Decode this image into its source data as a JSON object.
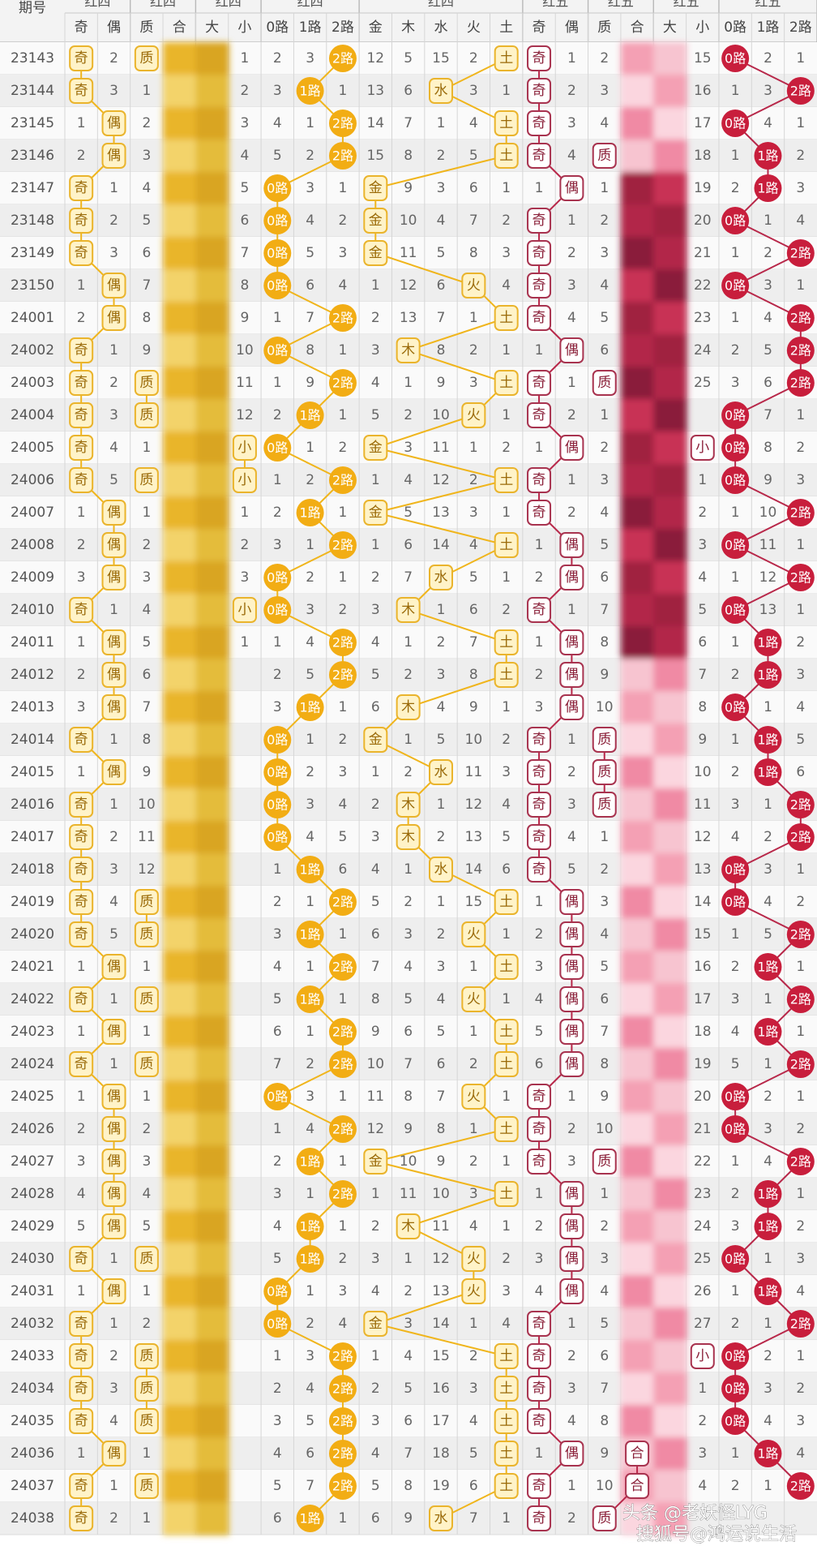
{
  "header": {
    "groups": [
      "红四",
      "红四",
      "红四",
      "红四",
      "红四",
      "红五",
      "红五",
      "红五",
      "红五"
    ],
    "columns": [
      "期号",
      "奇",
      "偶",
      "质",
      "合",
      "大",
      "小",
      "0路",
      "1路",
      "2路",
      "金",
      "木",
      "水",
      "火",
      "土",
      "奇",
      "偶",
      "质",
      "合",
      "大",
      "小",
      "0路",
      "1路",
      "2路"
    ]
  },
  "table": {
    "rows": [
      [
        23143,
        "奇",
        2,
        "质",
        null,
        null,
        1,
        2,
        3,
        "2路",
        12,
        5,
        15,
        2,
        "土",
        "奇",
        1,
        2,
        null,
        null,
        15,
        "0路",
        2,
        1
      ],
      [
        23144,
        "奇",
        3,
        1,
        null,
        null,
        2,
        3,
        "1路",
        1,
        13,
        6,
        "水",
        3,
        1,
        "奇",
        2,
        3,
        null,
        null,
        16,
        1,
        3,
        "2路"
      ],
      [
        23145,
        1,
        "偶",
        2,
        null,
        null,
        3,
        4,
        1,
        "2路",
        14,
        7,
        1,
        4,
        "土",
        "奇",
        3,
        4,
        null,
        null,
        17,
        "0路",
        4,
        1
      ],
      [
        23146,
        2,
        "偶",
        3,
        null,
        null,
        4,
        5,
        2,
        "2路",
        15,
        8,
        2,
        5,
        "土",
        "奇",
        4,
        "质",
        null,
        null,
        18,
        1,
        "1路",
        2
      ],
      [
        23147,
        "奇",
        1,
        4,
        null,
        null,
        5,
        "0路",
        3,
        1,
        "金",
        9,
        3,
        6,
        1,
        1,
        "偶",
        1,
        null,
        null,
        19,
        2,
        "1路",
        3
      ],
      [
        23148,
        "奇",
        2,
        5,
        null,
        null,
        6,
        "0路",
        4,
        2,
        "金",
        10,
        4,
        7,
        2,
        "奇",
        1,
        2,
        null,
        null,
        20,
        "0路",
        1,
        4
      ],
      [
        23149,
        "奇",
        3,
        6,
        null,
        null,
        7,
        "0路",
        5,
        3,
        "金",
        11,
        5,
        8,
        3,
        "奇",
        2,
        3,
        null,
        null,
        21,
        1,
        2,
        "2路"
      ],
      [
        23150,
        1,
        "偶",
        7,
        null,
        null,
        8,
        "0路",
        6,
        4,
        1,
        12,
        6,
        "火",
        4,
        "奇",
        3,
        4,
        null,
        null,
        22,
        "0路",
        3,
        1
      ],
      [
        24001,
        2,
        "偶",
        8,
        null,
        null,
        9,
        1,
        7,
        "2路",
        2,
        13,
        7,
        1,
        "土",
        "奇",
        4,
        5,
        null,
        null,
        23,
        1,
        4,
        "2路"
      ],
      [
        24002,
        "奇",
        1,
        9,
        null,
        null,
        10,
        "0路",
        8,
        1,
        3,
        "木",
        8,
        2,
        1,
        1,
        "偶",
        6,
        null,
        null,
        24,
        2,
        5,
        "2路"
      ],
      [
        24003,
        "奇",
        2,
        "质",
        null,
        null,
        11,
        1,
        9,
        "2路",
        4,
        1,
        9,
        3,
        "土",
        "奇",
        1,
        "质",
        null,
        null,
        25,
        3,
        6,
        "2路"
      ],
      [
        24004,
        "奇",
        3,
        "质",
        null,
        null,
        12,
        2,
        "1路",
        1,
        5,
        2,
        10,
        "火",
        1,
        "奇",
        2,
        1,
        null,
        null,
        null,
        "0路",
        7,
        1
      ],
      [
        24005,
        "奇",
        4,
        1,
        null,
        null,
        "小",
        "0路",
        1,
        2,
        "金",
        3,
        11,
        1,
        2,
        1,
        "偶",
        2,
        null,
        null,
        "小",
        "0路",
        8,
        2
      ],
      [
        24006,
        "奇",
        5,
        "质",
        null,
        null,
        "小",
        1,
        2,
        "2路",
        1,
        4,
        12,
        2,
        "土",
        "奇",
        1,
        3,
        null,
        null,
        1,
        "0路",
        9,
        3
      ],
      [
        24007,
        1,
        "偶",
        1,
        null,
        null,
        1,
        2,
        "1路",
        1,
        "金",
        5,
        13,
        3,
        1,
        "奇",
        2,
        4,
        null,
        null,
        2,
        1,
        10,
        "2路"
      ],
      [
        24008,
        2,
        "偶",
        2,
        null,
        null,
        2,
        3,
        1,
        "2路",
        1,
        6,
        14,
        4,
        "土",
        1,
        "偶",
        5,
        null,
        null,
        3,
        "0路",
        11,
        1
      ],
      [
        24009,
        3,
        "偶",
        3,
        null,
        null,
        3,
        "0路",
        2,
        1,
        2,
        7,
        "水",
        5,
        1,
        2,
        "偶",
        6,
        null,
        null,
        4,
        1,
        12,
        "2路"
      ],
      [
        24010,
        "奇",
        1,
        4,
        null,
        null,
        "小",
        "0路",
        3,
        2,
        3,
        "木",
        1,
        6,
        2,
        "奇",
        1,
        7,
        null,
        null,
        5,
        "0路",
        13,
        1
      ],
      [
        24011,
        1,
        "偶",
        5,
        null,
        null,
        1,
        1,
        4,
        "2路",
        4,
        1,
        2,
        7,
        "土",
        1,
        "偶",
        8,
        null,
        null,
        6,
        1,
        "1路",
        2
      ],
      [
        24012,
        2,
        "偶",
        6,
        null,
        null,
        null,
        2,
        5,
        "2路",
        5,
        2,
        3,
        8,
        "土",
        2,
        "偶",
        9,
        null,
        null,
        7,
        2,
        "1路",
        3
      ],
      [
        24013,
        3,
        "偶",
        7,
        null,
        null,
        null,
        3,
        "1路",
        1,
        6,
        "木",
        4,
        9,
        1,
        3,
        "偶",
        10,
        null,
        null,
        8,
        "0路",
        1,
        4
      ],
      [
        24014,
        "奇",
        1,
        8,
        null,
        null,
        null,
        "0路",
        1,
        2,
        "金",
        1,
        5,
        10,
        2,
        "奇",
        1,
        "质",
        null,
        null,
        9,
        1,
        "1路",
        5
      ],
      [
        24015,
        1,
        "偶",
        9,
        null,
        null,
        null,
        "0路",
        2,
        3,
        1,
        2,
        "水",
        11,
        3,
        "奇",
        2,
        "质",
        null,
        null,
        10,
        2,
        "1路",
        6
      ],
      [
        24016,
        "奇",
        1,
        10,
        null,
        null,
        null,
        "0路",
        3,
        4,
        2,
        "木",
        1,
        12,
        4,
        "奇",
        3,
        "质",
        null,
        null,
        11,
        3,
        1,
        "2路"
      ],
      [
        24017,
        "奇",
        2,
        11,
        null,
        null,
        null,
        "0路",
        4,
        5,
        3,
        "木",
        2,
        13,
        5,
        "奇",
        4,
        1,
        null,
        null,
        12,
        4,
        2,
        "2路"
      ],
      [
        24018,
        "奇",
        3,
        12,
        null,
        null,
        null,
        1,
        "1路",
        6,
        4,
        1,
        "水",
        14,
        6,
        "奇",
        5,
        2,
        null,
        null,
        13,
        "0路",
        3,
        1
      ],
      [
        24019,
        "奇",
        4,
        "质",
        null,
        null,
        null,
        2,
        1,
        "2路",
        5,
        2,
        1,
        15,
        "土",
        1,
        "偶",
        3,
        null,
        null,
        14,
        "0路",
        4,
        2
      ],
      [
        24020,
        "奇",
        5,
        "质",
        null,
        null,
        null,
        3,
        "1路",
        1,
        6,
        3,
        2,
        "火",
        1,
        2,
        "偶",
        4,
        null,
        null,
        15,
        1,
        5,
        "2路"
      ],
      [
        24021,
        1,
        "偶",
        1,
        null,
        null,
        null,
        4,
        1,
        "2路",
        7,
        4,
        3,
        1,
        "土",
        3,
        "偶",
        5,
        null,
        null,
        16,
        2,
        "1路",
        1
      ],
      [
        24022,
        "奇",
        1,
        "质",
        null,
        null,
        null,
        5,
        "1路",
        1,
        8,
        5,
        4,
        "火",
        1,
        4,
        "偶",
        6,
        null,
        null,
        17,
        3,
        1,
        "2路"
      ],
      [
        24023,
        1,
        "偶",
        1,
        null,
        null,
        null,
        6,
        1,
        "2路",
        9,
        6,
        5,
        1,
        "土",
        5,
        "偶",
        7,
        null,
        null,
        18,
        4,
        "1路",
        1
      ],
      [
        24024,
        "奇",
        1,
        "质",
        null,
        null,
        null,
        7,
        2,
        "2路",
        10,
        7,
        6,
        2,
        "土",
        6,
        "偶",
        8,
        null,
        null,
        19,
        5,
        1,
        "2路"
      ],
      [
        24025,
        1,
        "偶",
        1,
        null,
        null,
        null,
        "0路",
        3,
        1,
        11,
        8,
        7,
        "火",
        1,
        "奇",
        1,
        9,
        null,
        null,
        20,
        "0路",
        2,
        1
      ],
      [
        24026,
        2,
        "偶",
        2,
        null,
        null,
        null,
        1,
        4,
        "2路",
        12,
        9,
        8,
        1,
        "土",
        "奇",
        2,
        10,
        null,
        null,
        21,
        "0路",
        3,
        2
      ],
      [
        24027,
        3,
        "偶",
        3,
        null,
        null,
        null,
        2,
        "1路",
        1,
        "金",
        10,
        9,
        2,
        1,
        "奇",
        3,
        "质",
        null,
        null,
        22,
        1,
        4,
        "2路"
      ],
      [
        24028,
        4,
        "偶",
        4,
        null,
        null,
        null,
        3,
        1,
        "2路",
        1,
        11,
        10,
        3,
        "土",
        1,
        "偶",
        1,
        null,
        null,
        23,
        2,
        "1路",
        1
      ],
      [
        24029,
        5,
        "偶",
        5,
        null,
        null,
        null,
        4,
        "1路",
        1,
        2,
        "木",
        11,
        4,
        1,
        2,
        "偶",
        2,
        null,
        null,
        24,
        3,
        "1路",
        2
      ],
      [
        24030,
        "奇",
        1,
        "质",
        null,
        null,
        null,
        5,
        "1路",
        2,
        3,
        1,
        12,
        "火",
        2,
        3,
        "偶",
        3,
        null,
        null,
        25,
        "0路",
        1,
        3
      ],
      [
        24031,
        1,
        "偶",
        1,
        null,
        null,
        null,
        "0路",
        1,
        3,
        4,
        2,
        13,
        "火",
        3,
        4,
        "偶",
        4,
        null,
        null,
        26,
        1,
        "1路",
        4
      ],
      [
        24032,
        "奇",
        1,
        2,
        null,
        null,
        null,
        "0路",
        2,
        4,
        "金",
        3,
        14,
        1,
        4,
        "奇",
        1,
        5,
        null,
        null,
        27,
        2,
        1,
        "2路"
      ],
      [
        24033,
        "奇",
        2,
        "质",
        null,
        null,
        null,
        1,
        3,
        "2路",
        1,
        4,
        15,
        2,
        "土",
        "奇",
        2,
        6,
        null,
        null,
        "小",
        "0路",
        2,
        1
      ],
      [
        24034,
        "奇",
        3,
        "质",
        null,
        null,
        null,
        2,
        4,
        "2路",
        2,
        5,
        16,
        3,
        "土",
        "奇",
        3,
        7,
        null,
        null,
        1,
        "0路",
        3,
        2
      ],
      [
        24035,
        "奇",
        4,
        "质",
        null,
        null,
        null,
        3,
        5,
        "2路",
        3,
        6,
        17,
        4,
        "土",
        "奇",
        4,
        8,
        null,
        null,
        2,
        "0路",
        4,
        3
      ],
      [
        24036,
        1,
        "偶",
        1,
        null,
        null,
        null,
        4,
        6,
        "2路",
        4,
        7,
        18,
        5,
        "土",
        1,
        "偶",
        9,
        "合",
        null,
        3,
        1,
        "1路",
        4
      ],
      [
        24037,
        "奇",
        1,
        "质",
        null,
        null,
        null,
        5,
        7,
        "2路",
        5,
        8,
        19,
        6,
        "土",
        "奇",
        1,
        10,
        "合",
        null,
        4,
        2,
        1,
        "2路"
      ],
      [
        24038,
        "奇",
        2,
        1,
        null,
        null,
        null,
        6,
        "1路",
        1,
        6,
        9,
        "水",
        7,
        1,
        "奇",
        2,
        "质",
        null,
        null,
        null,
        null,
        null,
        null
      ]
    ]
  },
  "watermarks": [
    "头条 @老妖怪LYG",
    "搜狐号@鸿运说生活"
  ]
}
